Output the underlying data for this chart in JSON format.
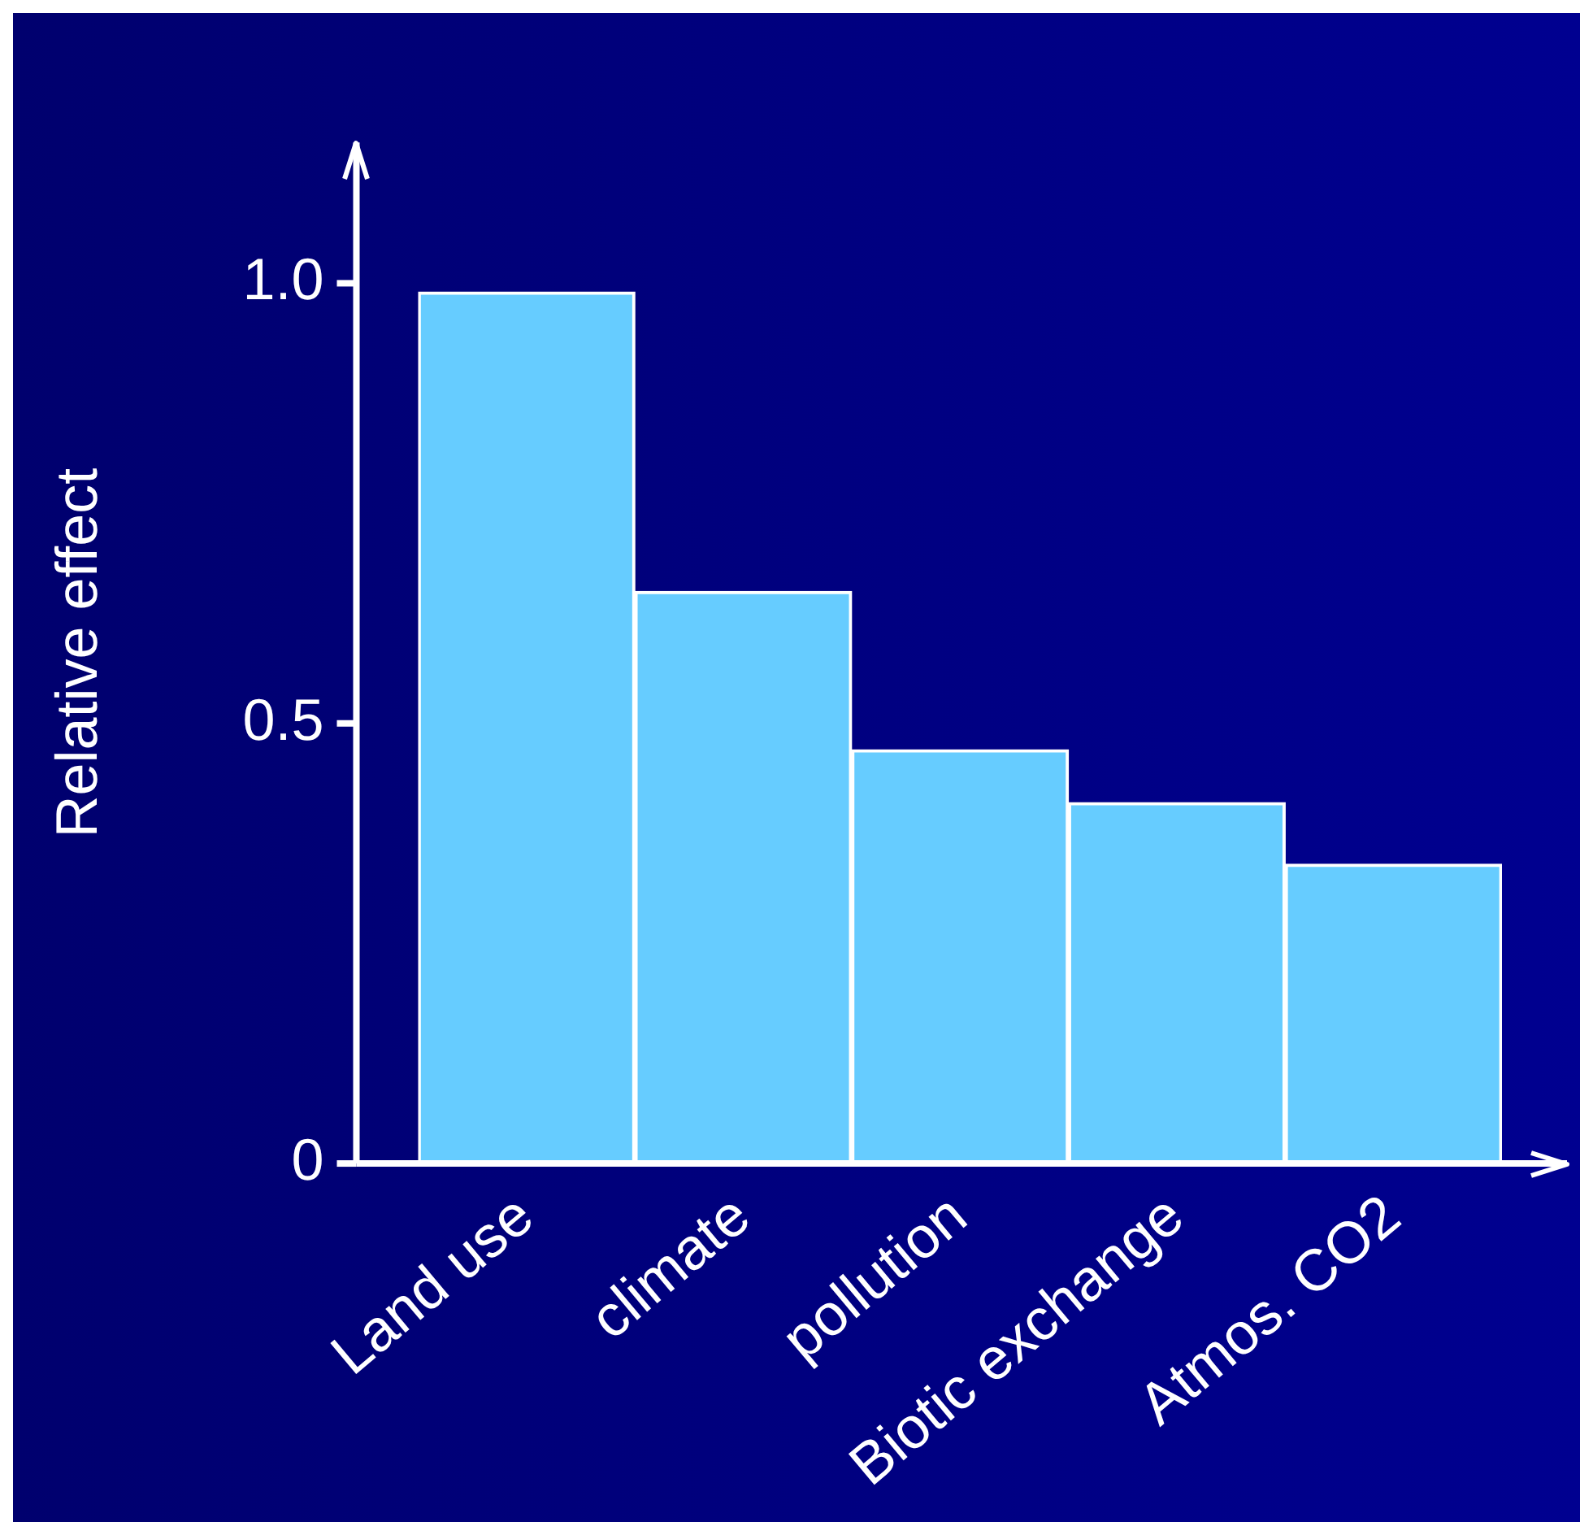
{
  "chart_data": {
    "type": "bar",
    "ylabel": "Relative effect",
    "categories": [
      "Land use",
      "climate",
      "pollution",
      "Biotic exchange",
      "Atmos. CO2"
    ],
    "values": [
      0.99,
      0.65,
      0.47,
      0.41,
      0.34
    ],
    "color": "#66ccff",
    "ylim": [
      0,
      1.16
    ],
    "yticks": [
      {
        "value": 0,
        "label": "0"
      },
      {
        "value": 0.5,
        "label": "0.5"
      },
      {
        "value": 1,
        "label": "1.0"
      }
    ],
    "grid": false,
    "legend": false
  }
}
